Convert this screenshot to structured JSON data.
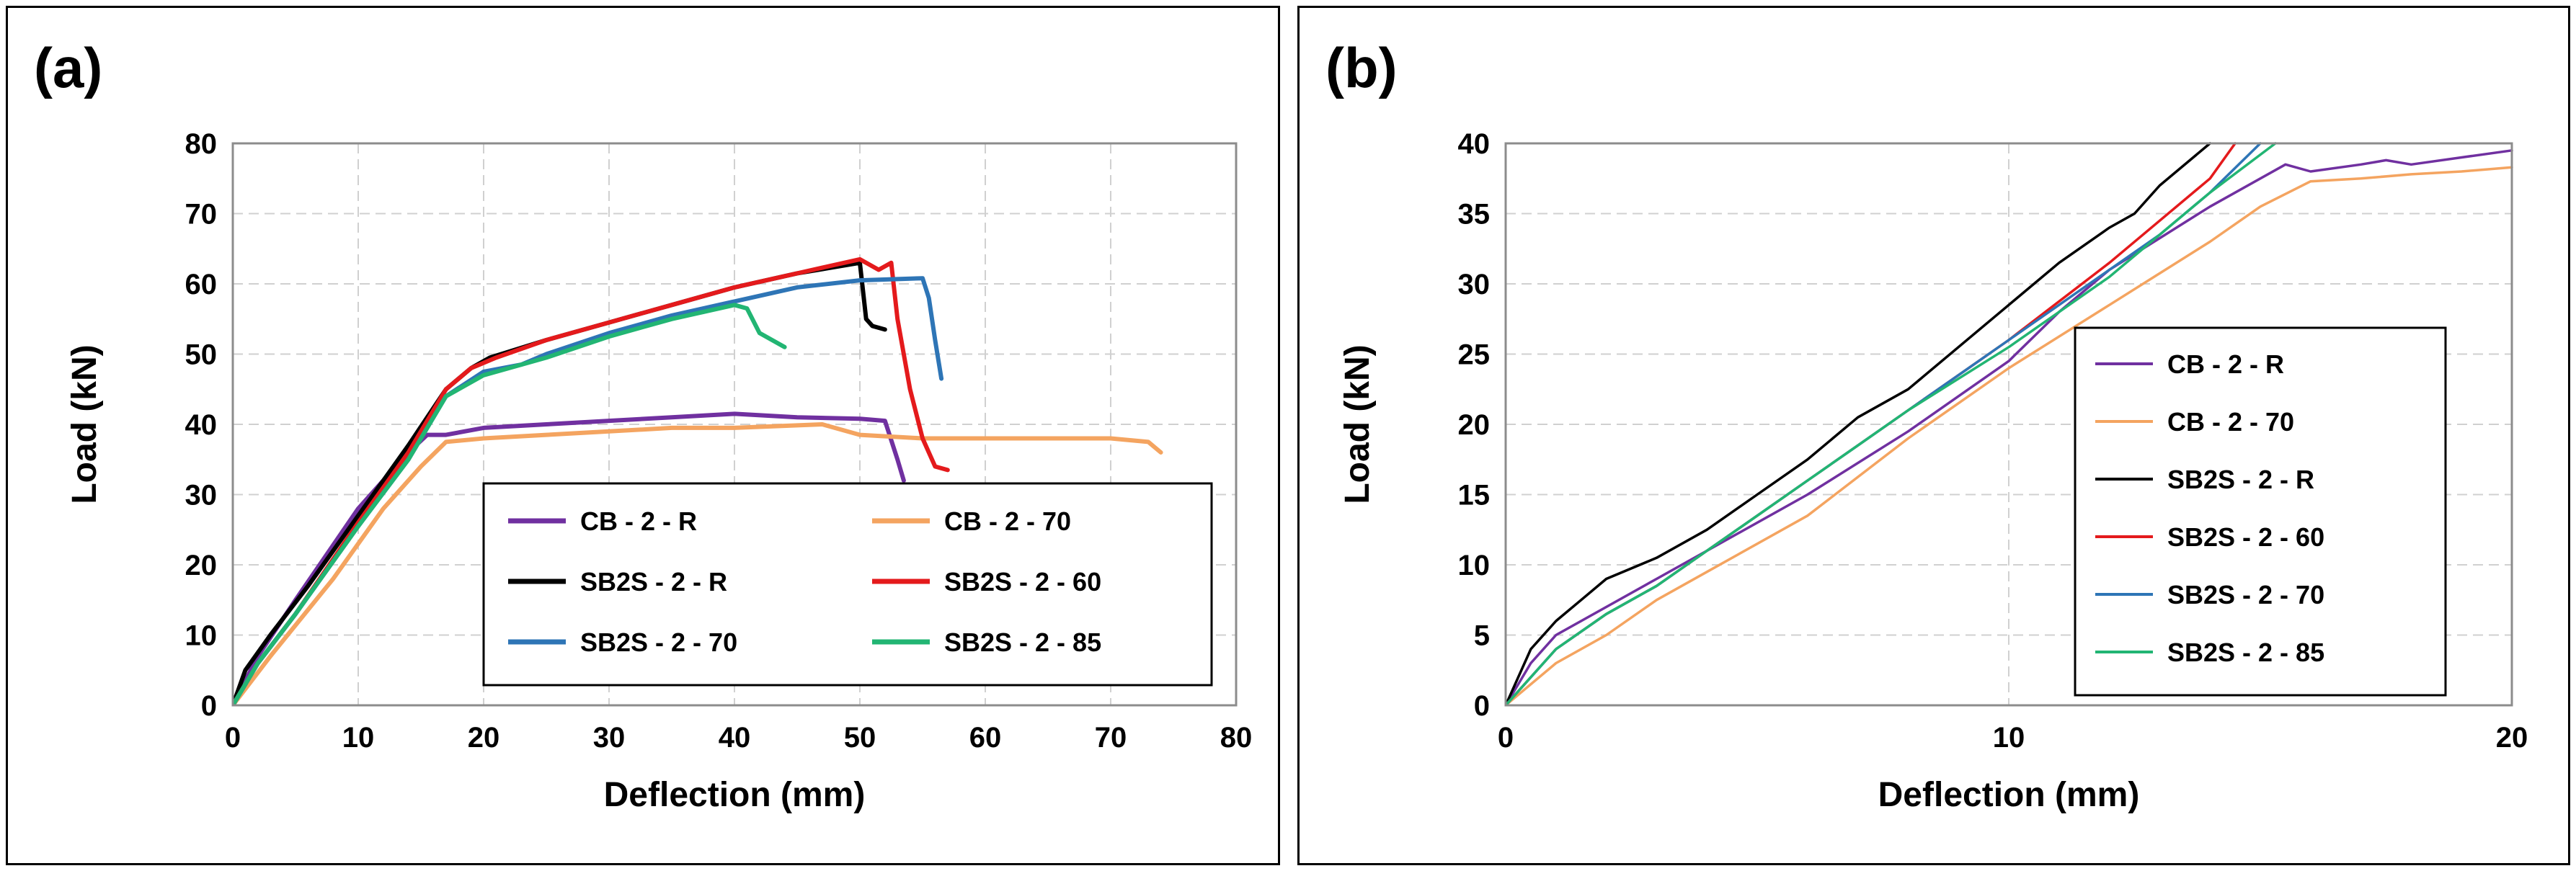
{
  "chart_data": [
    {
      "type": "line",
      "panel_label": "(a)",
      "xlabel": "Deflection (mm)",
      "ylabel": "Load (kN)",
      "xlim": [
        0,
        80
      ],
      "ylim": [
        0,
        80
      ],
      "xticks": [
        0,
        10,
        20,
        30,
        40,
        50,
        60,
        70,
        80
      ],
      "yticks": [
        0,
        10,
        20,
        30,
        40,
        50,
        60,
        70,
        80
      ],
      "grid": true,
      "legend_position": "bottom-right",
      "legend_columns": 2,
      "series": [
        {
          "name": "CB - 2 - R",
          "color": "#7030A0",
          "x": [
            0,
            2,
            5,
            10,
            14,
            15.5,
            17,
            20,
            25,
            30,
            35,
            40,
            45,
            50,
            52,
            53,
            53.5
          ],
          "y": [
            0,
            7,
            15,
            28,
            36,
            38.5,
            38.5,
            39.5,
            40,
            40.5,
            41,
            41.5,
            41,
            40.8,
            40.5,
            35,
            32
          ]
        },
        {
          "name": "CB - 2 - 70",
          "color": "#F4A460",
          "x": [
            0,
            3,
            8,
            12,
            15,
            17,
            20,
            25,
            30,
            35,
            40,
            47,
            50,
            55,
            60,
            65,
            70,
            73,
            74
          ],
          "y": [
            0,
            7,
            18,
            28,
            34,
            37.5,
            38,
            38.5,
            39,
            39.5,
            39.5,
            40,
            38.5,
            38,
            38,
            38,
            38,
            37.5,
            36
          ]
        },
        {
          "name": "SB2S - 2 - R",
          "color": "#000000",
          "x": [
            0,
            1,
            3,
            6,
            10,
            14,
            17,
            19,
            20.5,
            25,
            30,
            35,
            40,
            45,
            50,
            50.5,
            51,
            52
          ],
          "y": [
            0,
            5,
            10,
            17,
            27,
            37,
            45,
            48,
            49.5,
            52,
            54.5,
            57,
            59.5,
            61.5,
            63,
            55,
            54,
            53.5
          ]
        },
        {
          "name": "SB2S - 2 - 60",
          "color": "#E41A1C",
          "x": [
            0,
            2,
            5,
            10,
            14,
            17,
            19,
            21,
            25,
            30,
            35,
            40,
            45,
            50,
            51.5,
            52.5,
            53,
            54,
            55,
            56,
            57
          ],
          "y": [
            0,
            6,
            13,
            26,
            36,
            45,
            48,
            49.5,
            52,
            54.5,
            57,
            59.5,
            61.5,
            63.5,
            62,
            63,
            55,
            45,
            38,
            34,
            33.5
          ]
        },
        {
          "name": "SB2S - 2 - 70",
          "color": "#2E75B6",
          "x": [
            0,
            2,
            5,
            10,
            14,
            17,
            20,
            23,
            25,
            30,
            35,
            40,
            45,
            50,
            55,
            55.5,
            56,
            56.5
          ],
          "y": [
            0,
            6,
            13,
            25.5,
            35,
            44,
            47.5,
            48.5,
            50,
            53,
            55.5,
            57.5,
            59.5,
            60.5,
            60.8,
            58,
            52,
            46.5
          ]
        },
        {
          "name": "SB2S - 2 - 85",
          "color": "#22B573",
          "x": [
            0,
            2,
            5,
            10,
            14,
            17,
            20,
            25,
            30,
            35,
            40,
            41,
            42,
            43,
            44
          ],
          "y": [
            0,
            6,
            13,
            25.5,
            35,
            44,
            47,
            49.5,
            52.5,
            55,
            57,
            56.5,
            53,
            52,
            51
          ]
        }
      ]
    },
    {
      "type": "line",
      "panel_label": "(b)",
      "xlabel": "Deflection (mm)",
      "ylabel": "Load (kN)",
      "xlim": [
        0,
        20
      ],
      "ylim": [
        0,
        40
      ],
      "xticks": [
        0,
        10,
        20
      ],
      "yticks": [
        0,
        5,
        10,
        15,
        20,
        25,
        30,
        35,
        40
      ],
      "grid": true,
      "legend_position": "center-right",
      "legend_columns": 1,
      "series": [
        {
          "name": "CB - 2 - R",
          "color": "#7030A0",
          "x": [
            0,
            0.5,
            1,
            2,
            3,
            4,
            6,
            8,
            10,
            11,
            12,
            14,
            15.5,
            16,
            17,
            17.5,
            18,
            19,
            20
          ],
          "y": [
            0,
            3,
            5,
            7,
            9,
            11,
            15,
            19.5,
            24.5,
            28,
            31,
            35.5,
            38.5,
            38,
            38.5,
            38.8,
            38.5,
            39,
            39.5
          ]
        },
        {
          "name": "CB - 2 - 70",
          "color": "#F4A460",
          "x": [
            0,
            1,
            2,
            3,
            4,
            6,
            8,
            10,
            12,
            14,
            15,
            16,
            17,
            18,
            19,
            20
          ],
          "y": [
            0,
            3,
            5,
            7.5,
            9.5,
            13.5,
            19,
            24,
            28.5,
            33,
            35.5,
            37.3,
            37.5,
            37.8,
            38,
            38.3
          ]
        },
        {
          "name": "SB2S - 2 - R",
          "color": "#000000",
          "x": [
            0,
            0.5,
            1,
            1.5,
            2,
            3,
            4,
            5,
            6,
            7,
            8,
            9,
            10,
            11,
            12,
            12.5,
            13,
            14
          ],
          "y": [
            0,
            4,
            6,
            7.5,
            9,
            10.5,
            12.5,
            15,
            17.5,
            20.5,
            22.5,
            25.5,
            28.5,
            31.5,
            34,
            35,
            37,
            40
          ]
        },
        {
          "name": "SB2S - 2 - 60",
          "color": "#E41A1C",
          "x": [
            0,
            1,
            2,
            3,
            4,
            5,
            6,
            7,
            8,
            10,
            12,
            13,
            14,
            14.5
          ],
          "y": [
            0,
            4,
            6.5,
            8.5,
            11,
            13.5,
            16,
            18.5,
            21,
            26,
            31.5,
            34.5,
            37.5,
            40
          ]
        },
        {
          "name": "SB2S - 2 - 70",
          "color": "#2E75B6",
          "x": [
            0,
            1,
            2,
            3,
            4,
            5,
            6,
            7,
            8,
            10,
            12,
            13,
            14,
            15
          ],
          "y": [
            0,
            4,
            6.5,
            8.5,
            11,
            13.5,
            16,
            18.5,
            21,
            26,
            31,
            33.5,
            36.5,
            40
          ]
        },
        {
          "name": "SB2S - 2 - 85",
          "color": "#22B573",
          "x": [
            0,
            1,
            2,
            3,
            4,
            5,
            6,
            7,
            8,
            10,
            12,
            13,
            14,
            15.3
          ],
          "y": [
            0,
            4,
            6.5,
            8.5,
            11,
            13.5,
            16,
            18.5,
            21,
            25.5,
            30.5,
            33.5,
            36.5,
            40
          ]
        }
      ]
    }
  ]
}
